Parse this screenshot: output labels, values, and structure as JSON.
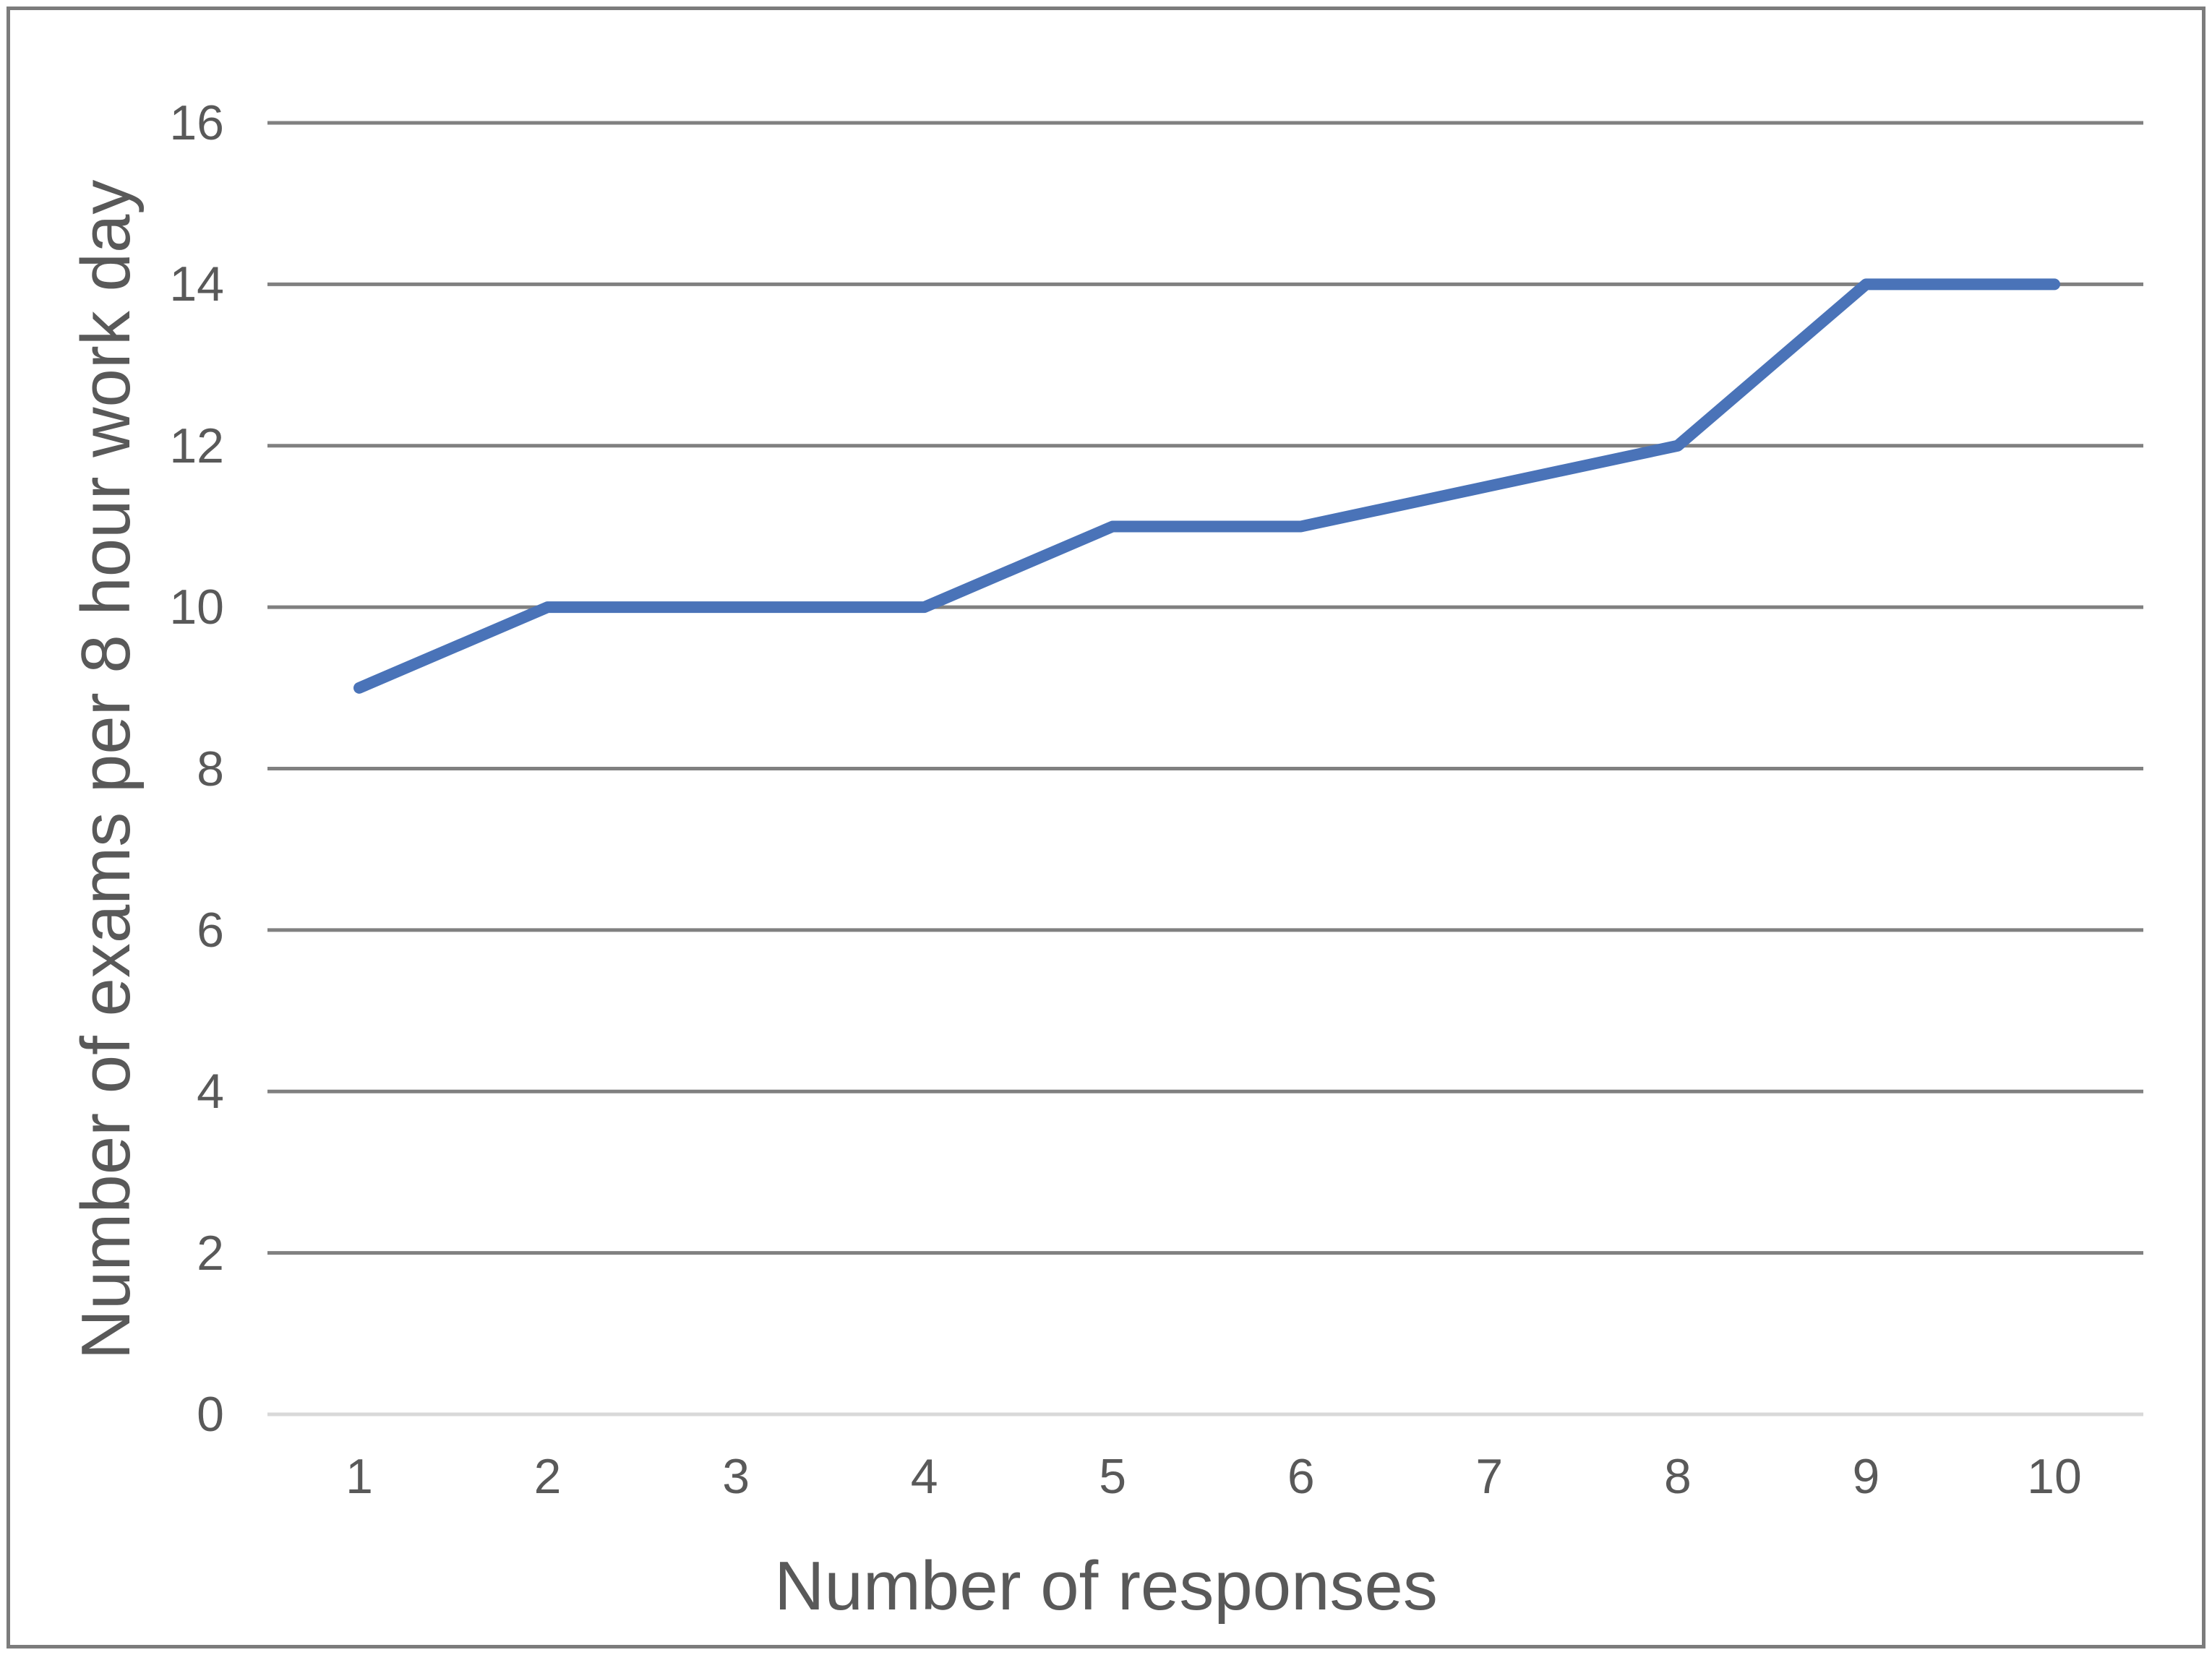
{
  "chart_data": {
    "type": "line",
    "x": [
      1,
      2,
      3,
      4,
      5,
      6,
      7,
      8,
      9,
      10
    ],
    "values": [
      9,
      10,
      10,
      10,
      11,
      11,
      11.5,
      12,
      14,
      14
    ],
    "title": "",
    "xlabel": "Number of responses",
    "ylabel": "Number of exams per 8 hour work day",
    "ylim": [
      0,
      16
    ],
    "yticks": [
      16,
      14,
      12,
      10,
      8,
      6,
      4,
      2,
      0
    ],
    "xticks": [
      1,
      2,
      3,
      4,
      5,
      6,
      7,
      8,
      9,
      10
    ],
    "grid": "horizontal",
    "legend": "none"
  },
  "colors": {
    "line": "#4a73b8",
    "gridline": "#808080",
    "zero_gridline": "#d9d9d9",
    "text": "#595959",
    "border": "#7c7c7c",
    "background": "#ffffff"
  }
}
